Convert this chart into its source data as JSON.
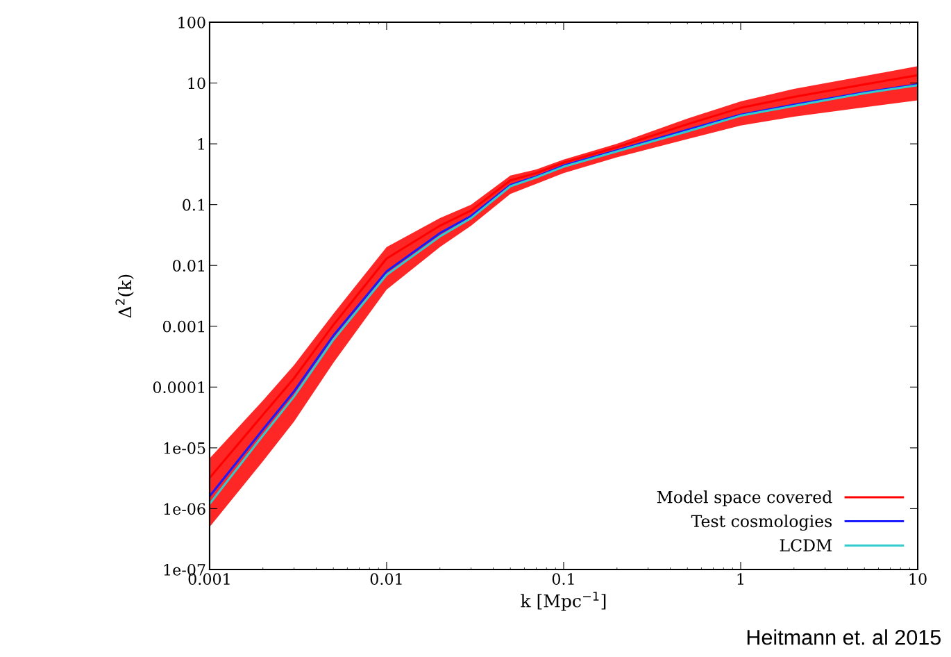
{
  "chart_data": {
    "type": "line",
    "xlabel": "k [Mpc$^{−1}$]",
    "ylabel": "Δ$^{2}$(k)",
    "log": "xy",
    "x": [
      0.001,
      0.002,
      0.003,
      0.005,
      0.01,
      0.02,
      0.03,
      0.05,
      0.07,
      0.1,
      0.2,
      0.5,
      1,
      2,
      5,
      10
    ],
    "series": [
      {
        "name": "Model space covered",
        "color": "#ff0000",
        "values": [
          3.2e-06,
          3.5e-05,
          0.00014,
          0.00105,
          0.013,
          0.045,
          0.08,
          0.25,
          0.33,
          0.49,
          0.88,
          2.1,
          3.9,
          5.9,
          9.5,
          13.4
        ],
        "lower": [
          5e-07,
          6e-06,
          2.7e-05,
          0.00025,
          0.004,
          0.02,
          0.045,
          0.15,
          0.22,
          0.33,
          0.6,
          1.2,
          2.0,
          2.8,
          4,
          5.2
        ],
        "upper": [
          6.7e-06,
          6e-05,
          0.00023,
          0.0016,
          0.02,
          0.06,
          0.1,
          0.3,
          0.38,
          0.55,
          1.0,
          2.6,
          5,
          8,
          13,
          19
        ]
      },
      {
        "name": "Test cosmologies",
        "color": "#1a1aff",
        "values": [
          1.6e-06,
          2e-05,
          8.5e-05,
          0.0007,
          0.008,
          0.034,
          0.065,
          0.21,
          0.29,
          0.44,
          0.78,
          1.7,
          3.0,
          4.4,
          7.0,
          9.5
        ]
      },
      {
        "name": "LCDM",
        "color": "#33cccc",
        "values": [
          1.2e-06,
          1.6e-05,
          7e-05,
          0.0006,
          0.007,
          0.03,
          0.06,
          0.2,
          0.28,
          0.42,
          0.75,
          1.6,
          2.9,
          4.2,
          6.8,
          9.2
        ]
      }
    ],
    "xlim": [
      0.001,
      10
    ],
    "xticks": [
      0.001,
      0.01,
      0.1,
      1,
      10
    ],
    "ylim": [
      1e-07,
      100
    ],
    "yticks": [
      {
        "value": 1e-07,
        "label": "1e-07"
      },
      {
        "value": 1e-06,
        "label": "1e-06"
      },
      {
        "value": 1e-05,
        "label": "1e-05"
      },
      0.0001,
      0.001,
      0.01,
      0.1,
      1,
      10,
      100
    ],
    "grid": false,
    "legend": "bottom right",
    "marker": "none",
    "line_style": "solid",
    "annotations": [
      "Heitmann et. al 2015"
    ]
  }
}
